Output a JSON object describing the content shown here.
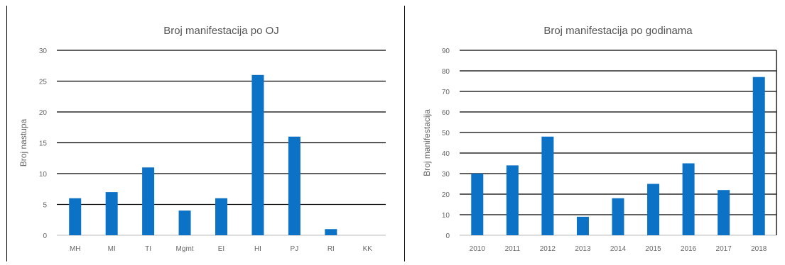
{
  "chart_data": [
    {
      "type": "bar",
      "title": "Broj manifestacija po OJ",
      "xlabel": "",
      "ylabel": "Broj nastupa",
      "ylim": [
        0,
        30
      ],
      "yticks": [
        "0",
        "5",
        "10",
        "15",
        "20",
        "25",
        "30"
      ],
      "categories": [
        "MH",
        "MI",
        "TI",
        "Mgmt",
        "EI",
        "HI",
        "PJ",
        "RI",
        "KK"
      ],
      "values": [
        6,
        7,
        11,
        4,
        6,
        26,
        16,
        1,
        0
      ],
      "grid": true,
      "color": "#0b72c6"
    },
    {
      "type": "bar",
      "title": "Broj manifestacija po godinama",
      "xlabel": "",
      "ylabel": "Broj manifestacija",
      "ylim": [
        0,
        90
      ],
      "yticks": [
        "0",
        "10",
        "20",
        "30",
        "40",
        "50",
        "60",
        "70",
        "80",
        "90"
      ],
      "categories": [
        "2010",
        "2011",
        "2012",
        "2013",
        "2014",
        "2015",
        "2016",
        "2017",
        "2018"
      ],
      "values": [
        30,
        34,
        48,
        9,
        18,
        25,
        35,
        22,
        77
      ],
      "grid": true,
      "color": "#0b72c6"
    }
  ]
}
